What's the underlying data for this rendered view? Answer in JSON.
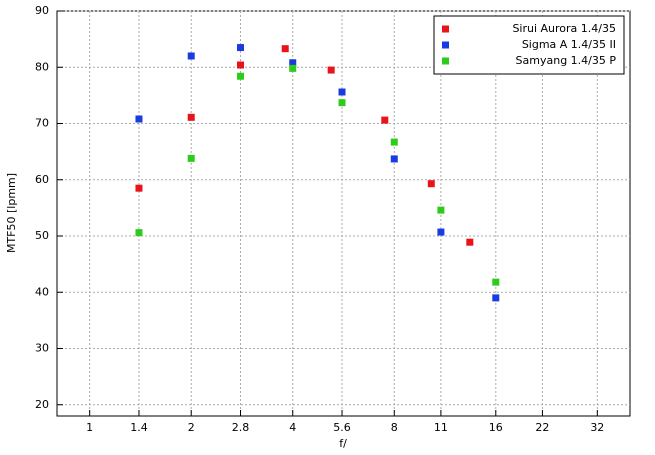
{
  "chart_data": {
    "type": "scatter",
    "x_label": "f/",
    "y_label": "MTF50 [lpmm]",
    "xlog": true,
    "grid": true,
    "legend": "upper right",
    "xlim": [
      0.8,
      40
    ],
    "xticks": [
      1,
      1.4,
      2,
      2.8,
      4,
      5.6,
      8,
      11,
      16,
      22,
      32
    ],
    "ylim": [
      18,
      90
    ],
    "yticks": [
      20,
      30,
      40,
      50,
      60,
      70,
      80,
      90
    ],
    "series": [
      {
        "name": "Sirui Aurora 1.4/35",
        "color": "#e8141a",
        "x": [
          1.4,
          2,
          2.8,
          3.8,
          5.2,
          7.5,
          10.3,
          13.4
        ],
        "values": [
          58.5,
          71.1,
          80.4,
          83.3,
          79.5,
          70.6,
          59.3,
          48.9
        ]
      },
      {
        "name": "Sigma A 1.4/35 II",
        "color": "#1a3be0",
        "x": [
          1.4,
          2,
          2.8,
          4,
          5.6,
          8,
          11,
          16
        ],
        "values": [
          70.8,
          82.0,
          83.5,
          80.8,
          75.6,
          63.7,
          50.7,
          39.0
        ]
      },
      {
        "name": "Samyang 1.4/35 P",
        "color": "#2ecc1a",
        "x": [
          1.4,
          2,
          2.8,
          4,
          5.6,
          8,
          11,
          16
        ],
        "values": [
          50.6,
          63.8,
          78.4,
          79.8,
          73.7,
          66.7,
          54.6,
          41.8
        ]
      }
    ]
  }
}
